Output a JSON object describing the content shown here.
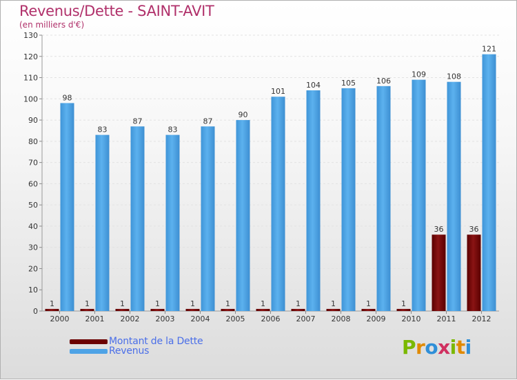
{
  "chart_title": "Revenus/Dette - SAINT-AVIT",
  "chart_subtitle": "(en milliers d'€)",
  "colors": {
    "dette": "#6b0000",
    "revenus": "#4ea3e6",
    "title": "#b0306a",
    "legend_text": "#4a6ee8"
  },
  "logo": {
    "text": "Proxiti",
    "letters": [
      "P",
      "r",
      "o",
      "x",
      "i",
      "t",
      "i"
    ]
  },
  "chart_data": {
    "type": "bar",
    "categories": [
      "2000",
      "2001",
      "2002",
      "2003",
      "2004",
      "2005",
      "2006",
      "2007",
      "2008",
      "2009",
      "2010",
      "2011",
      "2012"
    ],
    "series": [
      {
        "name": "Montant de la Dette",
        "values": [
          1,
          1,
          1,
          1,
          1,
          1,
          1,
          1,
          1,
          1,
          1,
          36,
          36
        ]
      },
      {
        "name": "Revenus",
        "values": [
          98,
          83,
          87,
          83,
          87,
          90,
          101,
          104,
          105,
          106,
          109,
          108,
          121
        ]
      }
    ],
    "ylim": [
      0,
      130
    ],
    "yticks": [
      0,
      10,
      20,
      30,
      40,
      50,
      60,
      70,
      80,
      90,
      100,
      110,
      120,
      130
    ],
    "grid": true,
    "legend": "bottom-left"
  }
}
